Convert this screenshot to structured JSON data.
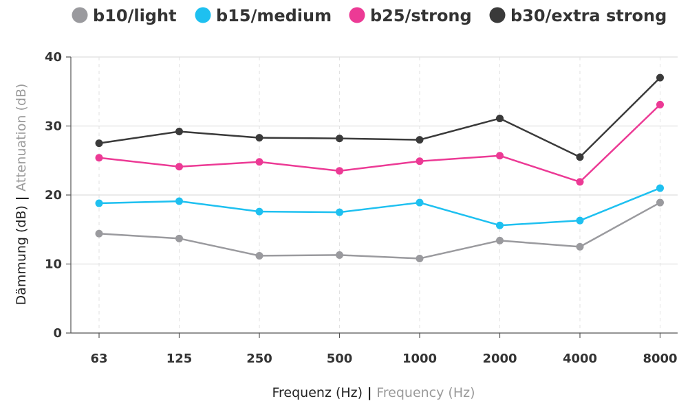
{
  "chart_data": {
    "type": "line",
    "categories": [
      "63",
      "125",
      "250",
      "500",
      "1000",
      "2000",
      "4000",
      "8000"
    ],
    "xlabel": {
      "main": "Frequenz (Hz)",
      "separator": " | ",
      "sub": "Frequency (Hz)"
    },
    "ylabel": {
      "main": "Dämmung (dB)",
      "separator": " | ",
      "sub": "Attenuation (dB)"
    },
    "ylim": [
      0,
      40
    ],
    "yticks": [
      0,
      10,
      20,
      30,
      40
    ],
    "grid": true,
    "legend_position": "top",
    "series": [
      {
        "name": "b10/light",
        "color": "#9a9a9e",
        "values": [
          14.4,
          13.7,
          11.2,
          11.3,
          10.8,
          13.4,
          12.5,
          18.9
        ]
      },
      {
        "name": "b15/medium",
        "color": "#1ec0f0",
        "values": [
          18.8,
          19.1,
          17.6,
          17.5,
          18.9,
          15.6,
          16.3,
          21.0
        ]
      },
      {
        "name": "b25/strong",
        "color": "#ec3a95",
        "values": [
          25.4,
          24.1,
          24.8,
          23.5,
          24.9,
          25.7,
          21.9,
          33.1
        ]
      },
      {
        "name": "b30/extra strong",
        "color": "#3a3a3a",
        "values": [
          27.5,
          29.2,
          28.3,
          28.2,
          28.0,
          31.1,
          25.5,
          37.0
        ]
      }
    ]
  }
}
